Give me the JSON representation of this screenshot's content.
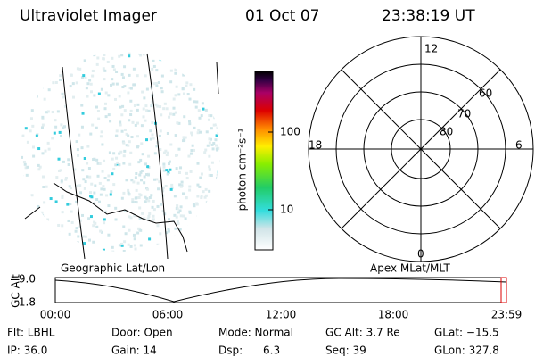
{
  "header": {
    "instrument": "Ultraviolet Imager",
    "date": "01 Oct 07",
    "time": "23:38:19 UT"
  },
  "colorbar": {
    "label": "photon cm⁻²s⁻¹",
    "ticks": [
      "100",
      "10"
    ]
  },
  "polar": {
    "mlt_labels": {
      "top": "12",
      "left": "18",
      "right": "6",
      "bottom": "0"
    },
    "lat_labels": [
      "60",
      "70",
      "80"
    ]
  },
  "orbit": {
    "left_title": "Geographic Lat/Lon",
    "right_title": "Apex MLat/MLT",
    "y_label": "GC Alt",
    "y_ticks": [
      "9.0",
      "1.8"
    ],
    "x_ticks": [
      "00:00",
      "06:00",
      "12:00",
      "18:00",
      "23:59"
    ]
  },
  "footer": {
    "rows": [
      [
        "Flt: LBHL",
        "Door: Open",
        "Mode: Normal",
        "GC Alt: 3.7 Re",
        "GLat: −15.5"
      ],
      [
        "IP: 36.0",
        "Gain: 14",
        "Dsp:      6.3",
        "Seq: 39",
        "GLon: 327.8"
      ]
    ]
  }
}
